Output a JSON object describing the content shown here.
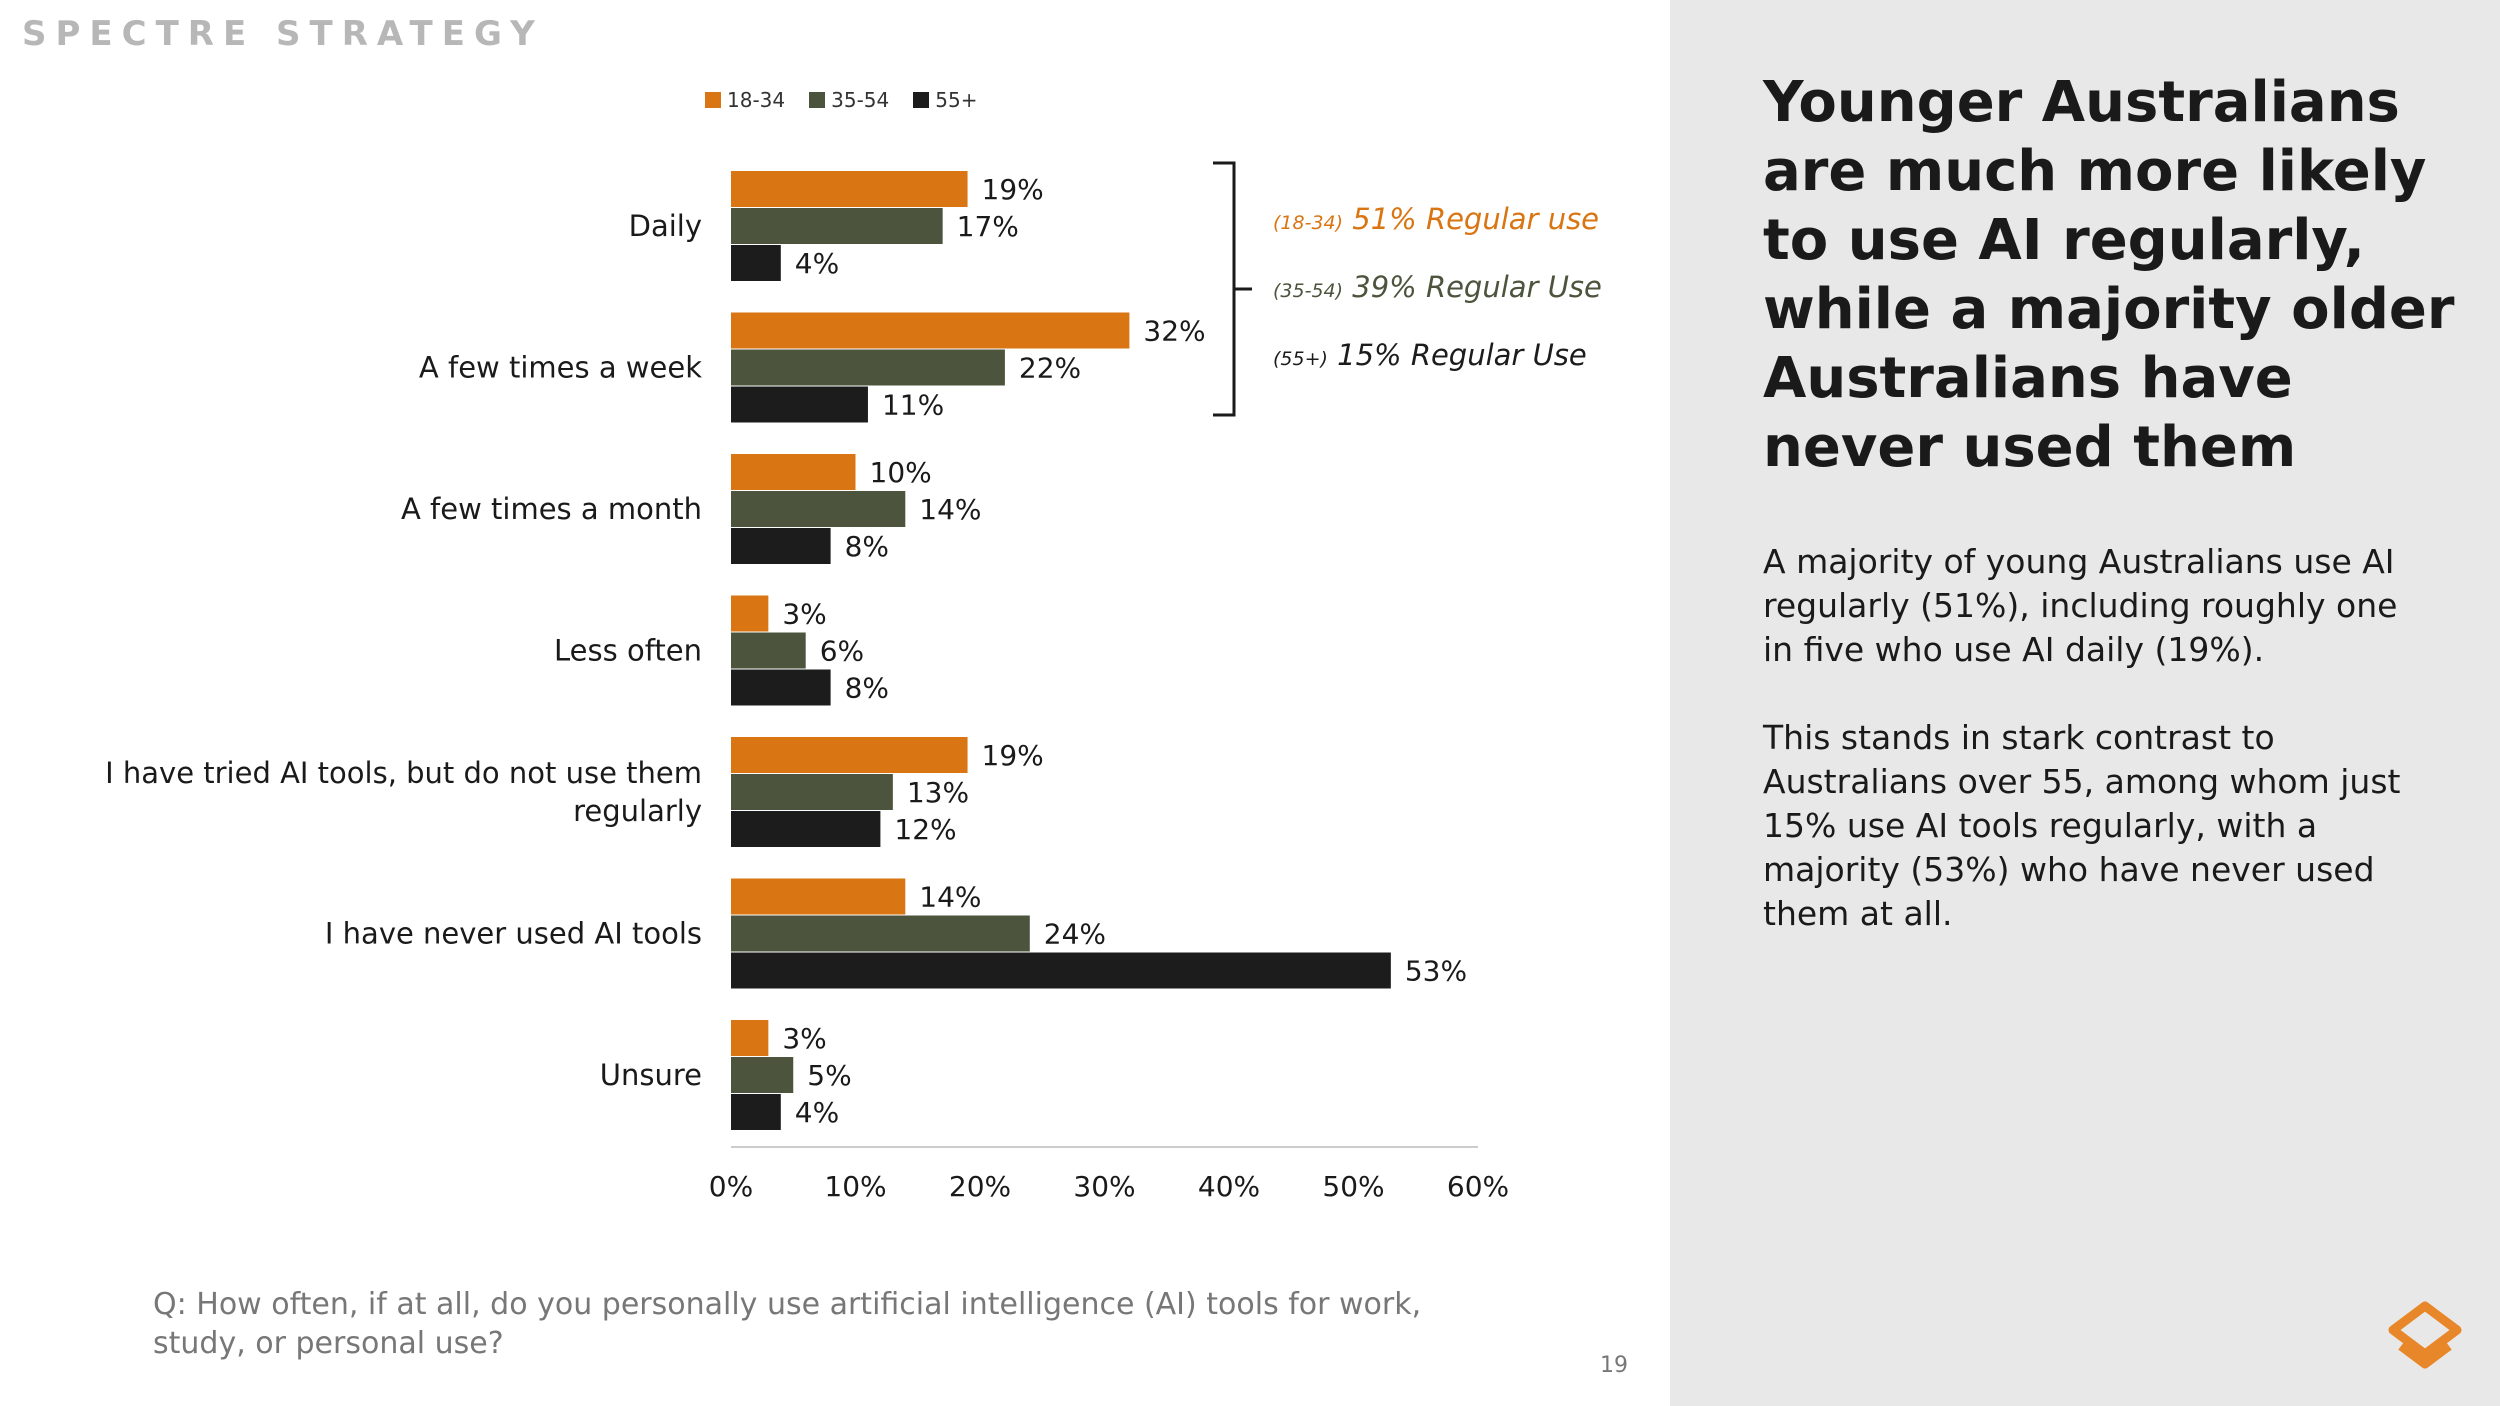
{
  "brand": "SPECTRE STRATEGY",
  "headline": "Younger Australians are much more likely to use AI regularly, while a majority older Australians have never used them",
  "body": [
    "A majority of young Australians use AI regularly (51%), including roughly one in five who use AI daily (19%).",
    "This stands in stark contrast to Australians over 55, among whom just 15% use AI tools regularly, with a majority (53%) who have never used them at all."
  ],
  "footnote": "Q: How often, if at all, do you personally use artificial intelligence (AI) tools for work, study, or personal use?",
  "page_number": "19",
  "colors": {
    "s1": "#d97512",
    "s2": "#4c543d",
    "s3": "#1c1c1c",
    "axis": "#cccccc"
  },
  "annotations": [
    {
      "prefix": "(18-34)",
      "text": "51% Regular use",
      "color": "#d97512"
    },
    {
      "prefix": "(35-54)",
      "text": "39% Regular Use",
      "color": "#4c543d"
    },
    {
      "prefix": "(55+)",
      "text": "15% Regular Use",
      "color": "#1c1c1c"
    }
  ],
  "chart_data": {
    "type": "bar",
    "orientation": "horizontal",
    "categories": [
      "Daily",
      "A few times a week",
      "A few times a month",
      "Less often",
      "I have tried AI tools, but do not use them regularly",
      "I have never used AI tools",
      "Unsure"
    ],
    "category_lines": [
      [
        "Daily"
      ],
      [
        "A few times a week"
      ],
      [
        "A few times a month"
      ],
      [
        "Less often"
      ],
      [
        "I have tried AI tools, but do not use them",
        "regularly"
      ],
      [
        "I have never used AI tools"
      ],
      [
        "Unsure"
      ]
    ],
    "series": [
      {
        "name": "18-34",
        "values": [
          19,
          32,
          10,
          3,
          19,
          14,
          3
        ]
      },
      {
        "name": "35-54",
        "values": [
          17,
          22,
          14,
          6,
          13,
          24,
          5
        ]
      },
      {
        "name": "55+",
        "values": [
          4,
          11,
          8,
          8,
          12,
          53,
          4
        ]
      }
    ],
    "xlim": [
      0,
      60
    ],
    "xticks": [
      0,
      10,
      20,
      30,
      40,
      50,
      60
    ],
    "tick_suffix": "%",
    "value_suffix": "%",
    "legend_position": "top"
  }
}
